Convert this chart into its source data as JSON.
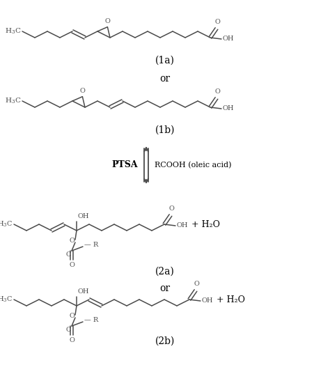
{
  "bg_color": "#ffffff",
  "line_color": "#4a4a4a",
  "text_color": "#000000",
  "figsize": [
    4.74,
    5.57
  ],
  "dpi": 100,
  "label_1a": "(1a)",
  "label_1b": "(1b)",
  "label_2a": "(2a)",
  "label_2b": "(2b)",
  "label_or1": "or",
  "label_or2": "or",
  "label_ptsa": "PTSA",
  "label_rcooh": "RCOOH (oleic acid)",
  "label_h2o_1": "+ H₂O",
  "label_h2o_2": "+ H₂O",
  "step": 18,
  "dip": 9
}
